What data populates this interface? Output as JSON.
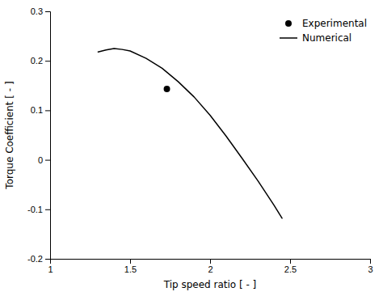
{
  "chart_data": {
    "type": "line",
    "x_label": "Tip speed ratio [ - ]",
    "y_label": "Torque Coefficient [ - ]",
    "series": [
      {
        "name": "Experimental",
        "type": "scatter",
        "marker": "circle",
        "color": "#000000",
        "x": [
          1.73
        ],
        "values": [
          0.143
        ]
      },
      {
        "name": "Numerical",
        "type": "line",
        "line_style": "solid",
        "color": "#000000",
        "x": [
          1.3,
          1.35,
          1.4,
          1.45,
          1.5,
          1.6,
          1.7,
          1.8,
          1.9,
          2.0,
          2.1,
          2.2,
          2.3,
          2.4,
          2.45
        ],
        "values": [
          0.218,
          0.222,
          0.225,
          0.223,
          0.22,
          0.205,
          0.185,
          0.158,
          0.127,
          0.09,
          0.048,
          0.003,
          -0.043,
          -0.092,
          -0.118
        ]
      }
    ],
    "xlim": [
      1,
      3
    ],
    "ylim": [
      -0.2,
      0.3
    ],
    "xticks": [
      1,
      1.5,
      2,
      2.5,
      3
    ],
    "yticks": [
      -0.2,
      -0.1,
      0,
      0.1,
      0.2,
      0.3
    ],
    "grid": false,
    "legend": "upper right"
  }
}
